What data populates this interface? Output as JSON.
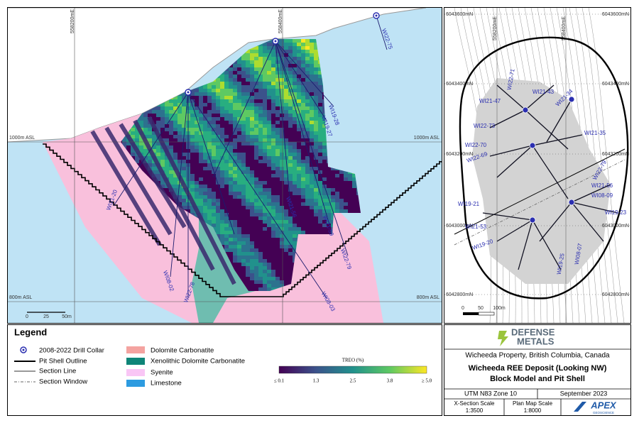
{
  "section": {
    "easting_labels": [
      "558200mE",
      "558400mE"
    ],
    "elevation_labels": [
      "1000m ASL",
      "1000m ASL",
      "800m ASL",
      "800m ASL"
    ],
    "drill_labels": [
      "WI22-75",
      "WI19-28",
      "WI19-27",
      "WI21-56",
      "WI21-59",
      "WI22-79",
      "WI08-03",
      "WI22-78",
      "WI08-02",
      "WI21-20"
    ],
    "scale_labels": [
      "0",
      "25",
      "50m"
    ]
  },
  "plan": {
    "northing_labels": [
      "6043600mN",
      "6043600mN",
      "6043400mN",
      "6043400mN",
      "6043200mN",
      "6043200mN",
      "6043000mN",
      "6043000mN",
      "6042800mN",
      "6042800mN"
    ],
    "easting_labels": [
      "558200mE",
      "558400mE"
    ],
    "drill_labels": [
      "WI22-71",
      "WI21-47",
      "WI21-43",
      "WI21-34",
      "WI22-73",
      "WI21-35",
      "WI22-70",
      "WI22-69",
      "WI19-21",
      "WI21-53",
      "WI19-20",
      "WI19-25",
      "WI21-56",
      "WI08-09",
      "WI19-23",
      "WI22-79",
      "WI08-07"
    ],
    "scale_labels": [
      "0",
      "50",
      "100m"
    ]
  },
  "legend": {
    "title": "Legend",
    "items": [
      "2008-2022 Drill Collar",
      "Pit Shell Outline",
      "Section Line",
      "Section Window",
      "Dolomite Carbonatite",
      "Xenolithic Dolomite Carbonatite",
      "Syenite",
      "Limestone"
    ],
    "colorbar_title": "TREO (%)",
    "colorbar_labels": [
      "≤ 0.1",
      "1.3",
      "2.5",
      "3.8",
      "≥ 5.0"
    ]
  },
  "title_block": {
    "logo_top": "DEFENSE",
    "logo_bottom": "METALS",
    "property": "Wicheeda Property, British Columbia, Canada",
    "title_line1": "Wicheeda REE Deposit (Looking NW)",
    "title_line2": "Block Model and Pit Shell",
    "projection": "UTM N83 Zone 10",
    "date": "September 2023",
    "xsection_scale_label": "X-Section Scale",
    "xsection_scale": "1:3500",
    "plan_scale_label": "Plan Map Scale",
    "plan_scale": "1:8000",
    "company": "APEX",
    "company_sub": "GEOSCIENCE"
  }
}
